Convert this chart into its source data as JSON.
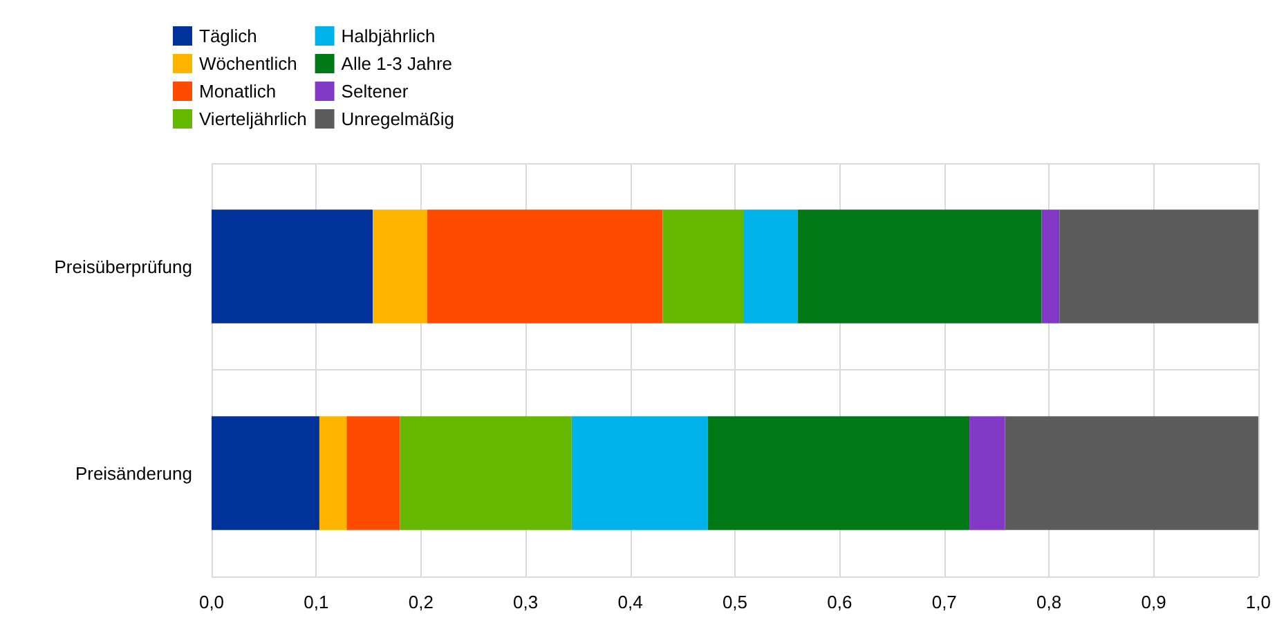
{
  "chart_data": {
    "type": "bar",
    "orientation": "horizontal",
    "stacked": true,
    "categories": [
      "Preisüberprüfung",
      "Preisänderung"
    ],
    "series": [
      {
        "name": "Täglich",
        "color": "#003299",
        "values": [
          0.154,
          0.103
        ]
      },
      {
        "name": "Wöchentlich",
        "color": "#ffb400",
        "values": [
          0.052,
          0.026
        ]
      },
      {
        "name": "Monatlich",
        "color": "#ff4b00",
        "values": [
          0.225,
          0.051
        ]
      },
      {
        "name": "Vierteljährlich",
        "color": "#65b800",
        "values": [
          0.077,
          0.164
        ]
      },
      {
        "name": "Halbjährlich",
        "color": "#00b1ea",
        "values": [
          0.052,
          0.13
        ]
      },
      {
        "name": "Alle 1-3 Jahre",
        "color": "#007816",
        "values": [
          0.233,
          0.25
        ]
      },
      {
        "name": "Seltener",
        "color": "#8139c6",
        "values": [
          0.017,
          0.034
        ]
      },
      {
        "name": "Unregelmäßig",
        "color": "#5c5c5c",
        "values": [
          0.19,
          0.242
        ]
      }
    ],
    "xlim": [
      0,
      1
    ],
    "xticks": [
      {
        "value": 0,
        "label": "0,0"
      },
      {
        "value": 0.1,
        "label": "0,1"
      },
      {
        "value": 0.2,
        "label": "0,2"
      },
      {
        "value": 0.3,
        "label": "0,3"
      },
      {
        "value": 0.4,
        "label": "0,4"
      },
      {
        "value": 0.5,
        "label": "0,5"
      },
      {
        "value": 0.6,
        "label": "0,6"
      },
      {
        "value": 0.7,
        "label": "0,7"
      },
      {
        "value": 0.8,
        "label": "0,8"
      },
      {
        "value": 0.9,
        "label": "0,9"
      },
      {
        "value": 1,
        "label": "1,0"
      }
    ],
    "grid": true,
    "legend": "top left"
  }
}
